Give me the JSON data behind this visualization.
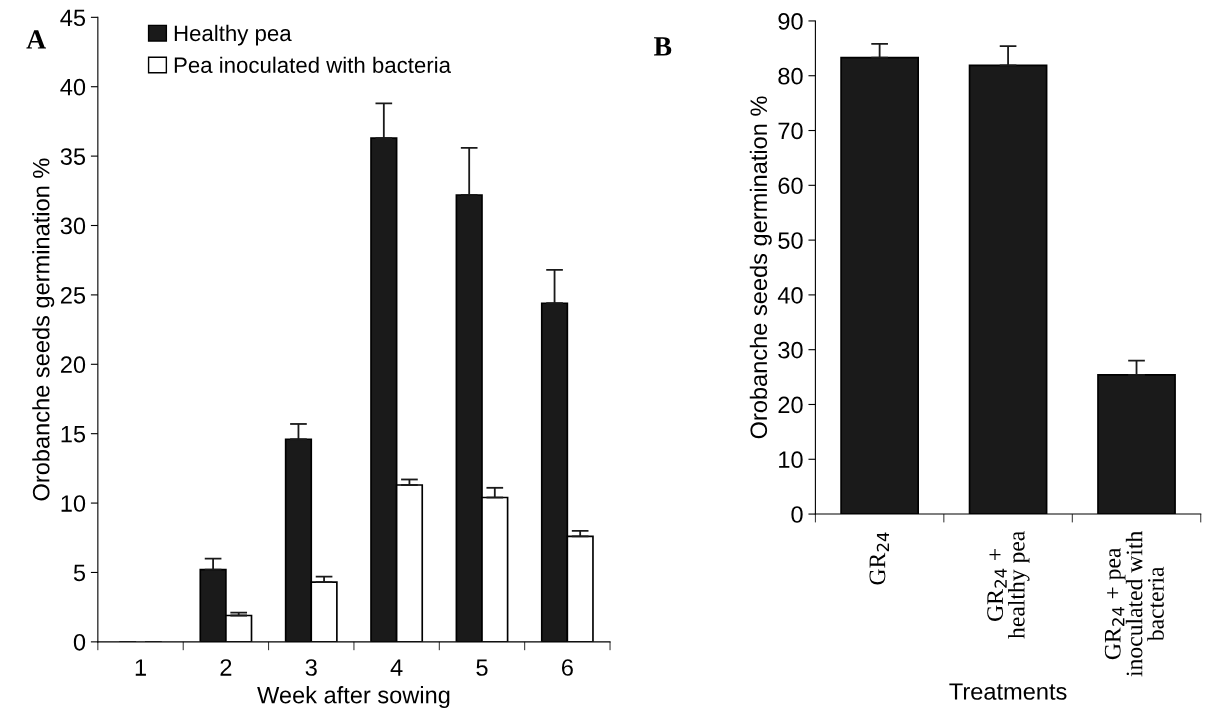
{
  "chart_data": [
    {
      "type": "bar",
      "categories": [
        "1",
        "2",
        "3",
        "4",
        "5",
        "6"
      ],
      "xlabel": "Week after sowing",
      "ylabel": "Orobanche seeds germination %",
      "ylim": [
        0,
        45
      ],
      "yticks": [
        0,
        5,
        10,
        15,
        20,
        25,
        30,
        35,
        40,
        45
      ],
      "legend": "top left",
      "grid": false,
      "annotations": [
        "A"
      ],
      "series": [
        {
          "name": "Healthy pea",
          "color": "#1a1a1a",
          "values": [
            0,
            5.2,
            14.6,
            36.3,
            32.2,
            24.4
          ],
          "errors": [
            null,
            [
              5.2,
              6.0
            ],
            [
              14.6,
              15.7
            ],
            [
              36.3,
              38.8
            ],
            [
              32.2,
              35.6
            ],
            [
              24.4,
              26.8
            ]
          ]
        },
        {
          "name": "Pea inoculated with bacteria",
          "color": "#ffffff",
          "values": [
            0,
            1.9,
            4.3,
            11.3,
            10.4,
            7.6
          ],
          "errors": [
            null,
            [
              1.9,
              2.1
            ],
            [
              4.3,
              4.7
            ],
            [
              11.3,
              11.7
            ],
            [
              10.4,
              11.1
            ],
            [
              7.6,
              8.0
            ]
          ]
        }
      ]
    },
    {
      "type": "bar",
      "categories": [
        "GR$_{24}$",
        "GR$_{24}$ +\nhealthy pea",
        "GR$_{24}$ + pea\ninoculated with\nbacteria"
      ],
      "xlabel": "Treatments",
      "ylabel": "Orobanche seeds germination %",
      "ylim": [
        0,
        90
      ],
      "yticks": [
        0,
        10,
        20,
        30,
        40,
        50,
        60,
        70,
        80,
        90
      ],
      "grid": false,
      "annotations": [
        "B"
      ],
      "series": [
        {
          "color": "#1a1a1a",
          "values": [
            83.3,
            81.9,
            25.4
          ],
          "errors": [
            [
              83.3,
              85.8
            ],
            [
              81.9,
              85.4
            ],
            [
              25.4,
              28.0
            ]
          ]
        }
      ]
    }
  ]
}
